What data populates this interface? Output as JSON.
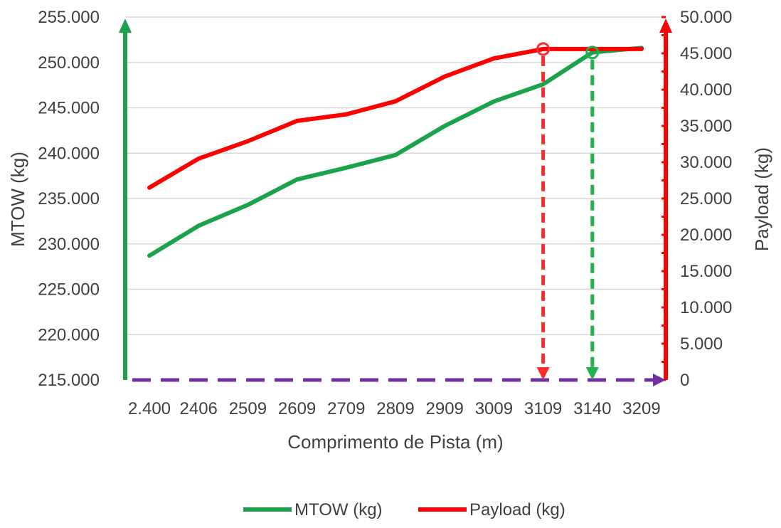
{
  "chart_data": {
    "type": "line",
    "categories": [
      "2.400",
      "2406",
      "2509",
      "2609",
      "2709",
      "2809",
      "2909",
      "3009",
      "3109",
      "3140",
      "3209"
    ],
    "series": [
      {
        "name": "MTOW (kg)",
        "axis": "left",
        "color": "#1aa34a",
        "values": [
          228700,
          232000,
          234300,
          237100,
          238400,
          239800,
          243000,
          245700,
          247600,
          251100,
          251600
        ]
      },
      {
        "name": "Payload (kg)",
        "axis": "right",
        "color": "#ff0000",
        "values": [
          26500,
          30500,
          32900,
          35700,
          36600,
          38400,
          41800,
          44300,
          45600,
          45600,
          45600
        ]
      }
    ],
    "xlabel": "Comprimento de Pista (m)",
    "ylabel_left": "MTOW (kg)",
    "ylabel_right": "Payload (kg)",
    "ylim_left": [
      215000,
      255000
    ],
    "ylim_right": [
      0,
      50000
    ],
    "yticks_left": [
      "215.000",
      "220.000",
      "225.000",
      "230.000",
      "235.000",
      "240.000",
      "245.000",
      "250.000",
      "255.000"
    ],
    "yticks_right": [
      "0",
      "5.000",
      "10.000",
      "15.000",
      "20.000",
      "25.000",
      "30.000",
      "35.000",
      "40.000",
      "45.000",
      "50.000"
    ],
    "grid": true,
    "legend": "bottom",
    "annotations": [
      {
        "kind": "marker-with-dashed-drop",
        "series": "Payload (kg)",
        "category": "3109",
        "color": "#ff2a2a"
      },
      {
        "kind": "marker-with-dashed-drop",
        "series": "MTOW (kg)",
        "category": "3140",
        "color": "#22b14c"
      },
      {
        "kind": "arrow",
        "axis": "left",
        "direction": "up",
        "color": "#1aa34a"
      },
      {
        "kind": "arrow",
        "axis": "right",
        "direction": "up",
        "color": "#ff0000"
      },
      {
        "kind": "dashed-arrow",
        "axis": "x",
        "direction": "right",
        "color": "#7030a0"
      }
    ]
  }
}
